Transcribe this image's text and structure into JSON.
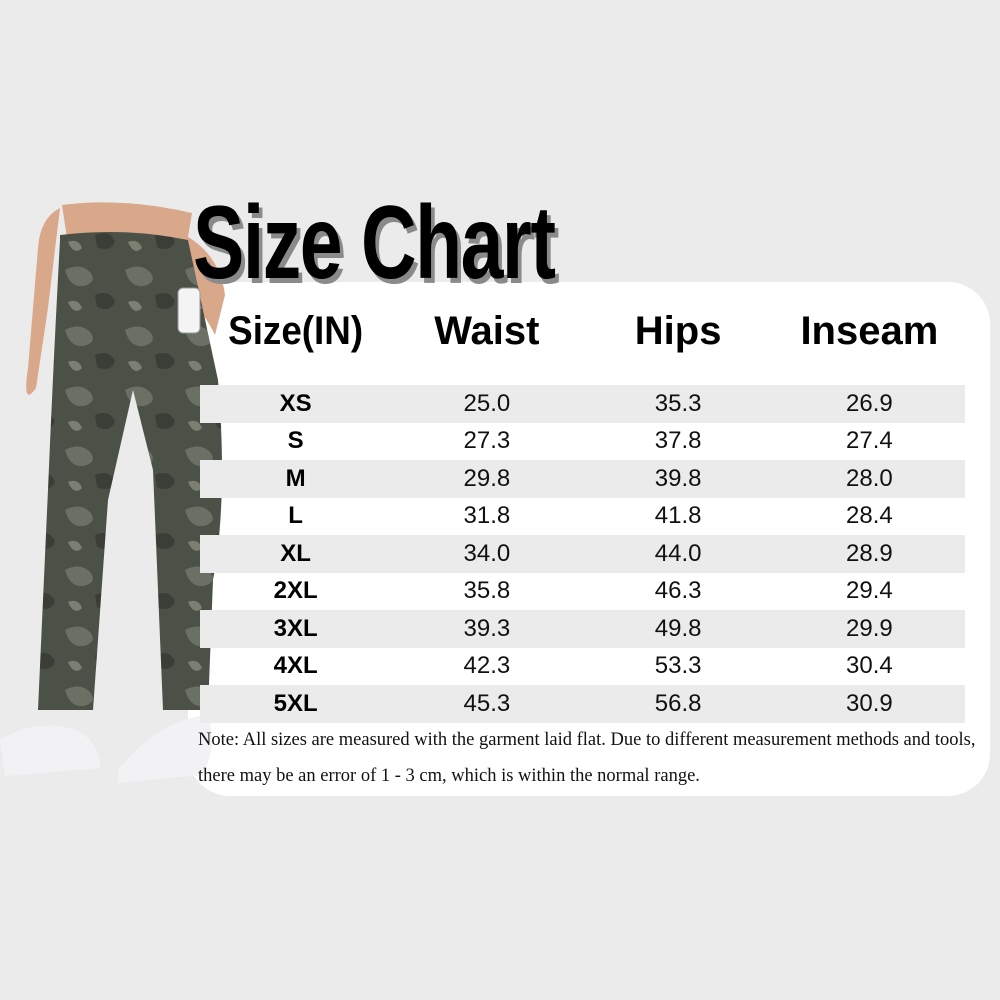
{
  "title": "Size Chart",
  "colors": {
    "background": "#ebebeb",
    "card": "#ffffff",
    "stripe": "#ebebeb",
    "camo": "#4a5045"
  },
  "figure": {
    "description_icon": "model-wearing-camo-jogger-pants"
  },
  "table": {
    "headers": [
      "Size(IN)",
      "Waist",
      "Hips",
      "Inseam"
    ],
    "rows": [
      [
        "XS",
        "25.0",
        "35.3",
        "26.9"
      ],
      [
        "S",
        "27.3",
        "37.8",
        "27.4"
      ],
      [
        "M",
        "29.8",
        "39.8",
        "28.0"
      ],
      [
        "L",
        "31.8",
        "41.8",
        "28.4"
      ],
      [
        "XL",
        "34.0",
        "44.0",
        "28.9"
      ],
      [
        "2XL",
        "35.8",
        "46.3",
        "29.4"
      ],
      [
        "3XL",
        "39.3",
        "49.8",
        "29.9"
      ],
      [
        "4XL",
        "42.3",
        "53.3",
        "30.4"
      ],
      [
        "5XL",
        "45.3",
        "56.8",
        "30.9"
      ]
    ]
  },
  "note": "Note: All sizes are measured with the garment laid flat. Due to different measurement methods and tools, there may be an error of 1 - 3 cm, which is within the normal range."
}
